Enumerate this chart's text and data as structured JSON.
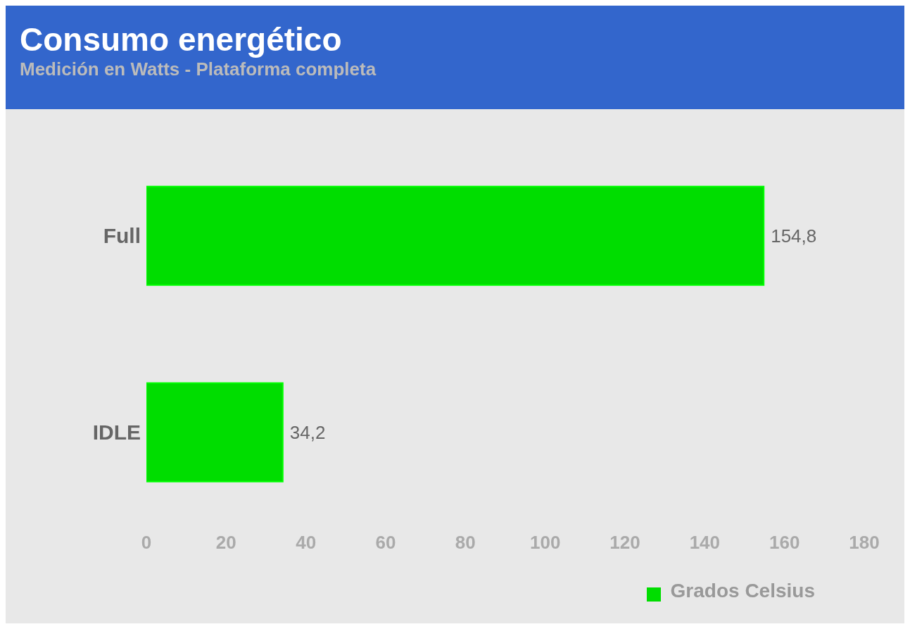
{
  "chart_data": {
    "type": "bar",
    "orientation": "horizontal",
    "title": "Consumo energético",
    "subtitle": "Medición en Watts - Plataforma completa",
    "categories": [
      "Full",
      "IDLE"
    ],
    "series": [
      {
        "name": "Grados Celsius",
        "color": "#00dd00",
        "values": [
          154.8,
          34.2
        ],
        "value_labels": [
          "154,8",
          "34,2"
        ]
      }
    ],
    "xlim": [
      0,
      180
    ],
    "xticks": [
      0,
      20,
      40,
      60,
      80,
      100,
      120,
      140,
      160,
      180
    ],
    "legend": "bottom right"
  }
}
